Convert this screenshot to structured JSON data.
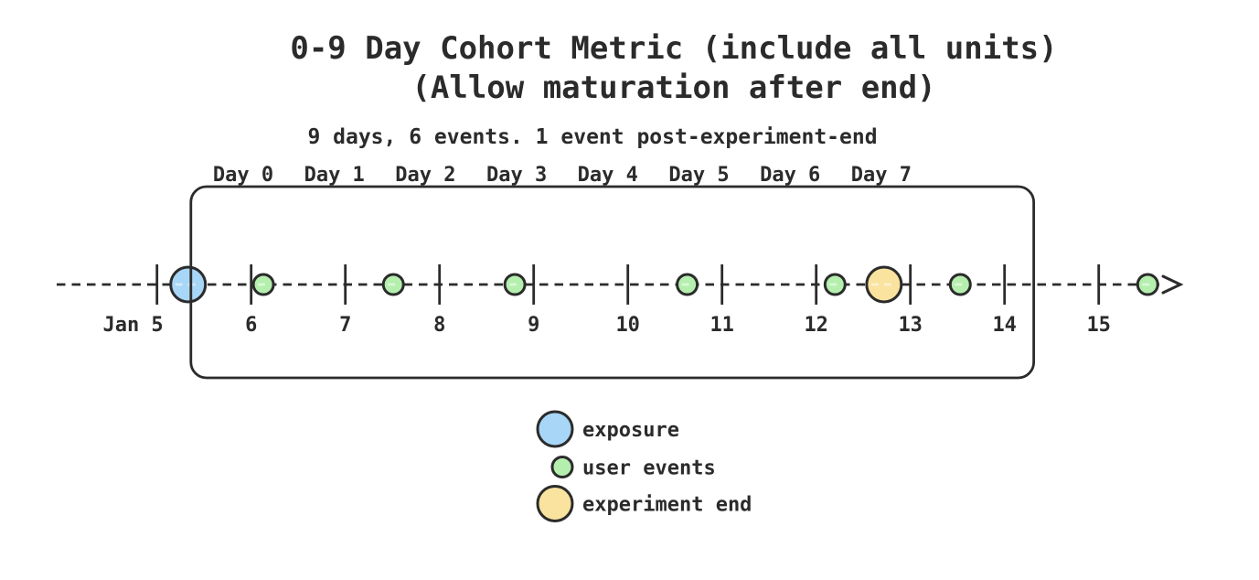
{
  "title": {
    "line1": "0-9 Day Cohort Metric (include all units)",
    "line2": "(Allow maturation after end)"
  },
  "subtitle": "9 days, 6 events. 1 event post-experiment-end",
  "chart_data": {
    "type": "timeline",
    "axis": {
      "unit": "date (January)",
      "ticks": [
        {
          "day": 5,
          "label": "Jan 5"
        },
        {
          "day": 6,
          "label": "6"
        },
        {
          "day": 7,
          "label": "7"
        },
        {
          "day": 8,
          "label": "8"
        },
        {
          "day": 9,
          "label": "9"
        },
        {
          "day": 10,
          "label": "10"
        },
        {
          "day": 11,
          "label": "11"
        },
        {
          "day": 12,
          "label": "12"
        },
        {
          "day": 13,
          "label": "13"
        },
        {
          "day": 14,
          "label": "14"
        },
        {
          "day": 15,
          "label": "15"
        }
      ],
      "arrow_end": true
    },
    "day_labels": [
      "Day 0",
      "Day 1",
      "Day 2",
      "Day 3",
      "Day 4",
      "Day 5",
      "Day 6",
      "Day 7"
    ],
    "events": {
      "exposure": {
        "day": 5.33
      },
      "user_events": {
        "days": [
          6.13,
          7.51,
          8.8,
          10.63,
          12.2,
          13.53,
          15.52
        ]
      },
      "experiment_end": {
        "day": 12.72
      }
    },
    "cohort_window": {
      "start_day": 5.36,
      "end_day": 14.31
    }
  },
  "legend": {
    "items": [
      {
        "label": "exposure",
        "color": "#a8d6f6",
        "size": "large"
      },
      {
        "label": "user events",
        "color": "#b4efae",
        "size": "small"
      },
      {
        "label": "experiment end",
        "color": "#f9e39e",
        "size": "large"
      }
    ]
  },
  "colors": {
    "exposure": "#a8d6f6",
    "user_event": "#b4efae",
    "experiment_end": "#f9e39e",
    "ink": "#2b2b2b",
    "background": "#ffffff"
  }
}
